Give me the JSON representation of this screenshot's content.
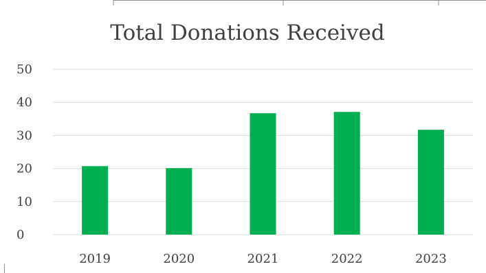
{
  "chart_data": {
    "type": "bar",
    "title": "Total Donations Received",
    "xlabel": "",
    "ylabel": "",
    "categories": [
      "2019",
      "2020",
      "2021",
      "2022",
      "2023"
    ],
    "values": [
      20.7,
      20.1,
      36.7,
      37.1,
      31.7
    ],
    "ylim": [
      0,
      50
    ],
    "yticks": [
      0,
      10,
      20,
      30,
      40,
      50
    ],
    "grid": true,
    "legend": "none",
    "bar_color": "#00b050",
    "grid_color": "#d9d9d9",
    "text_color": "#404040"
  }
}
